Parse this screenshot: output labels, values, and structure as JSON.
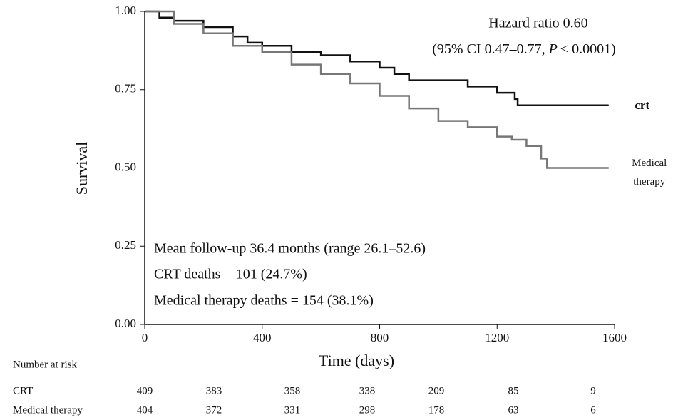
{
  "chart_data": {
    "type": "step",
    "y_label": "Survival",
    "x_label": "Time (days)",
    "xlim": [
      0,
      1600
    ],
    "xticks": [
      0,
      400,
      800,
      1200,
      1600
    ],
    "ylim": [
      0,
      1
    ],
    "yticks": [
      {
        "value": 0,
        "label": "0.00"
      },
      {
        "value": 0.25,
        "label": "0.25"
      },
      {
        "value": 0.5,
        "label": "0.50"
      },
      {
        "value": 0.75,
        "label": "0.75"
      },
      {
        "value": 1,
        "label": "1.00"
      }
    ],
    "annotations": [
      "Hazard ratio 0.60",
      "(95% CI 0.47–0.77, ",
      "P",
      "< 0.0001)"
    ],
    "notes": [
      "Mean follow-up 36.4 months (range 26.1–52.6)",
      "CRT deaths = 101 (24.7%)",
      "Medical therapy deaths = 154 (38.1%)"
    ],
    "series": [
      {
        "name": "crt",
        "color": "#111111",
        "x": [
          0,
          50,
          100,
          200,
          300,
          350,
          400,
          500,
          600,
          700,
          800,
          850,
          900,
          1000,
          1100,
          1200,
          1260,
          1270,
          1580
        ],
        "values": [
          1.0,
          0.98,
          0.97,
          0.95,
          0.92,
          0.9,
          0.89,
          0.87,
          0.86,
          0.84,
          0.82,
          0.8,
          0.78,
          0.78,
          0.76,
          0.74,
          0.72,
          0.7,
          0.7
        ]
      },
      {
        "name": "Medical therapy",
        "color": "#777777",
        "x": [
          0,
          100,
          200,
          300,
          400,
          500,
          600,
          700,
          800,
          900,
          1000,
          1100,
          1200,
          1250,
          1300,
          1350,
          1370,
          1580
        ],
        "values": [
          1.0,
          0.96,
          0.93,
          0.89,
          0.87,
          0.83,
          0.8,
          0.77,
          0.73,
          0.69,
          0.65,
          0.63,
          0.6,
          0.59,
          0.57,
          0.53,
          0.5,
          0.5
        ]
      }
    ]
  },
  "risk_table": {
    "title": "Number at risk",
    "rows": [
      {
        "label": "CRT",
        "values": [
          "409",
          "383",
          "358",
          "338",
          "209",
          "85",
          "9"
        ]
      },
      {
        "label": "Medical therapy",
        "values": [
          "404",
          "372",
          "331",
          "298",
          "178",
          "63",
          "6"
        ]
      }
    ]
  }
}
